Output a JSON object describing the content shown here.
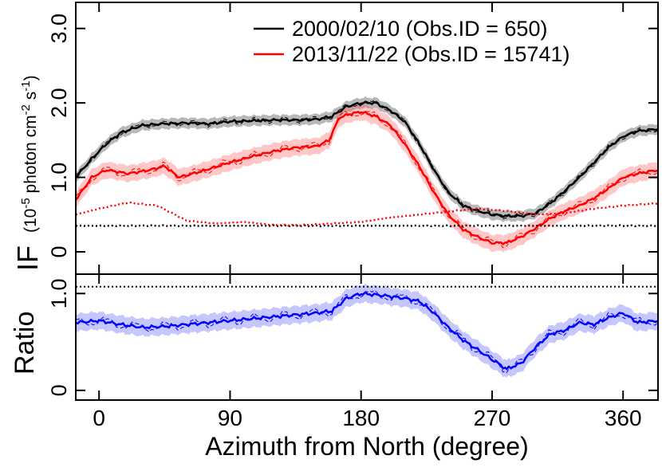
{
  "chart_data": [
    {
      "type": "line",
      "panel": "top",
      "ylabel_main": "IF",
      "ylabel_unit": "(10-5 photon cm-2 s-1)",
      "xlim": [
        -16,
        384
      ],
      "ylim": [
        -0.3,
        3.35
      ],
      "yticks": [
        0,
        1.0,
        2.0,
        3.0
      ],
      "ytick_labels": [
        "0",
        "1.0",
        "2.0",
        "3.0"
      ],
      "legend_position": "top-right",
      "series": [
        {
          "name": "2000/02/10 (Obs.ID = 650)",
          "color": "#000000",
          "x": [
            -16,
            -5,
            5,
            15,
            30,
            45,
            60,
            75,
            90,
            105,
            120,
            135,
            150,
            160,
            170,
            180,
            190,
            200,
            210,
            220,
            230,
            240,
            250,
            260,
            270,
            280,
            290,
            300,
            310,
            320,
            330,
            340,
            350,
            360,
            370,
            384
          ],
          "y": [
            1.0,
            1.25,
            1.45,
            1.6,
            1.7,
            1.72,
            1.73,
            1.72,
            1.75,
            1.76,
            1.77,
            1.77,
            1.78,
            1.82,
            1.95,
            2.0,
            2.0,
            1.9,
            1.75,
            1.45,
            1.1,
            0.8,
            0.62,
            0.55,
            0.5,
            0.48,
            0.48,
            0.52,
            0.65,
            0.82,
            1.0,
            1.2,
            1.4,
            1.55,
            1.62,
            1.65
          ],
          "band_halfwidth": 0.07
        },
        {
          "name": "2013/11/22 (Obs.ID = 15741)",
          "color": "#ff0000",
          "x": [
            -16,
            -5,
            5,
            20,
            35,
            45,
            55,
            70,
            90,
            105,
            120,
            135,
            150,
            158,
            165,
            172,
            180,
            190,
            200,
            210,
            220,
            230,
            240,
            250,
            260,
            270,
            280,
            290,
            300,
            310,
            320,
            330,
            340,
            350,
            360,
            370,
            384
          ],
          "y": [
            0.7,
            1.0,
            1.1,
            1.05,
            1.1,
            1.15,
            1.0,
            1.08,
            1.2,
            1.28,
            1.35,
            1.4,
            1.42,
            1.5,
            1.8,
            1.85,
            1.88,
            1.82,
            1.7,
            1.45,
            1.15,
            0.8,
            0.5,
            0.3,
            0.2,
            0.12,
            0.12,
            0.2,
            0.32,
            0.45,
            0.55,
            0.62,
            0.72,
            0.85,
            1.0,
            1.05,
            1.1
          ],
          "band_halfwidth": 0.11
        },
        {
          "name": "black-dotted-background",
          "color": "#000000",
          "style": "dotted",
          "x": [
            -16,
            384
          ],
          "y": [
            0.35,
            0.35
          ]
        },
        {
          "name": "red-dotted-background",
          "color": "#ff0000",
          "style": "dotted",
          "x": [
            -16,
            0,
            20,
            40,
            60,
            80,
            100,
            120,
            140,
            160,
            180,
            200,
            220,
            240,
            260,
            280,
            300,
            320,
            340,
            360,
            384
          ],
          "y": [
            0.5,
            0.58,
            0.66,
            0.62,
            0.42,
            0.38,
            0.4,
            0.36,
            0.36,
            0.38,
            0.4,
            0.46,
            0.5,
            0.54,
            0.58,
            0.55,
            0.5,
            0.52,
            0.58,
            0.62,
            0.65
          ]
        }
      ]
    },
    {
      "type": "line",
      "panel": "bottom",
      "ylabel": "Ratio",
      "xlabel": "Azimuth from North (degree)",
      "xlim": [
        -16,
        384
      ],
      "ylim": [
        -0.1,
        1.2
      ],
      "yticks": [
        0,
        1.0
      ],
      "ytick_labels": [
        "0",
        "1.0"
      ],
      "xticks": [
        0,
        90,
        180,
        270,
        360
      ],
      "xtick_labels": [
        "0",
        "90",
        "180",
        "270",
        "360"
      ],
      "reference_line": 1.07,
      "series": [
        {
          "color": "#0000ff",
          "x": [
            -16,
            0,
            15,
            30,
            45,
            60,
            75,
            90,
            105,
            120,
            135,
            150,
            160,
            170,
            180,
            195,
            210,
            220,
            230,
            240,
            250,
            260,
            270,
            280,
            290,
            300,
            310,
            320,
            330,
            340,
            350,
            360,
            370,
            384
          ],
          "y": [
            0.7,
            0.72,
            0.68,
            0.65,
            0.66,
            0.68,
            0.7,
            0.72,
            0.74,
            0.76,
            0.78,
            0.8,
            0.82,
            0.95,
            1.0,
            0.98,
            0.95,
            0.92,
            0.8,
            0.65,
            0.52,
            0.42,
            0.32,
            0.22,
            0.28,
            0.45,
            0.58,
            0.62,
            0.7,
            0.68,
            0.75,
            0.8,
            0.7,
            0.72
          ],
          "band_halfwidth": 0.09
        }
      ]
    }
  ]
}
